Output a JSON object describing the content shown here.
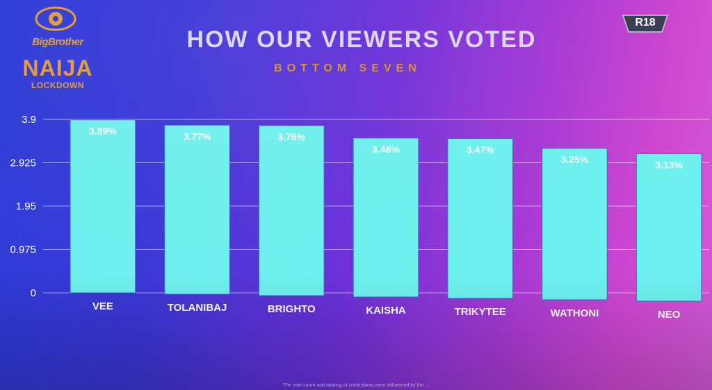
{
  "logo": {
    "icon": "eye-icon",
    "line1": "BigBrother",
    "line2": "NAIJA",
    "line3": "LOCKDOWN"
  },
  "rating_badge": "R18",
  "chart_data": {
    "type": "bar",
    "title": "HOW OUR VIEWERS VOTED",
    "subtitle": "BOTTOM SEVEN",
    "categories": [
      "VEE",
      "TOLANIBAJ",
      "BRIGHTO",
      "KAISHA",
      "TRIKYTEE",
      "WATHONI",
      "NEO"
    ],
    "values": [
      3.89,
      3.77,
      3.76,
      3.48,
      3.47,
      3.25,
      3.13
    ],
    "data_labels": [
      "3.89%",
      "3.77%",
      "3.76%",
      "3.48%",
      "3.47%",
      "3.25%",
      "3.13%"
    ],
    "y_ticks": [
      "3.9",
      "2.925",
      "1.95",
      "0.975",
      "0"
    ],
    "ylim": [
      0,
      3.9
    ],
    "grid": true,
    "bar_color": "#6ef0ee",
    "xlabel": "",
    "ylabel": ""
  },
  "footnote": "The vote count and ranking of contestants were influenced by the ..."
}
